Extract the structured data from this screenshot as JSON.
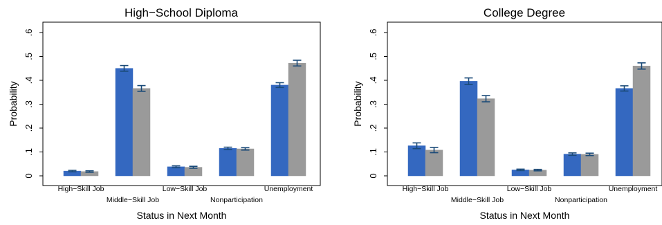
{
  "chart_data": [
    {
      "type": "bar",
      "title": "High−School Diploma",
      "xlabel": "Status in Next Month",
      "ylabel": "Probability",
      "ylim": [
        0,
        0.6
      ],
      "yticks": [
        0,
        0.1,
        0.2,
        0.3,
        0.4,
        0.5,
        0.6
      ],
      "ytick_labels": [
        "0",
        ".1",
        ".2",
        ".3",
        ".4",
        ".5",
        ".6"
      ],
      "categories": [
        "High−Skill Job",
        "Middle−Skill Job",
        "Low−Skill Job",
        "Nonparticipation",
        "Unemployment"
      ],
      "series": [
        {
          "color": "#3468c0",
          "values": [
            0.02,
            0.45,
            0.038,
            0.115,
            0.38
          ],
          "errors": [
            0.003,
            0.012,
            0.004,
            0.005,
            0.01
          ]
        },
        {
          "color": "#9a9a9a",
          "values": [
            0.018,
            0.366,
            0.036,
            0.113,
            0.472
          ],
          "errors": [
            0.003,
            0.012,
            0.004,
            0.005,
            0.012
          ]
        }
      ],
      "grid": false,
      "legend": "none"
    },
    {
      "type": "bar",
      "title": "College Degree",
      "xlabel": "Status in Next Month",
      "ylabel": "Probability",
      "ylim": [
        0,
        0.6
      ],
      "yticks": [
        0,
        0.1,
        0.2,
        0.3,
        0.4,
        0.5,
        0.6
      ],
      "ytick_labels": [
        "0",
        ".1",
        ".2",
        ".3",
        ".4",
        ".5",
        ".6"
      ],
      "categories": [
        "High−Skill Job",
        "Middle−Skill Job",
        "Low−Skill Job",
        "Nonparticipation",
        "Unemployment"
      ],
      "series": [
        {
          "color": "#3468c0",
          "values": [
            0.126,
            0.396,
            0.025,
            0.091,
            0.366
          ],
          "errors": [
            0.012,
            0.014,
            0.003,
            0.005,
            0.011
          ]
        },
        {
          "color": "#9a9a9a",
          "values": [
            0.108,
            0.323,
            0.024,
            0.09,
            0.46
          ],
          "errors": [
            0.011,
            0.013,
            0.003,
            0.005,
            0.013
          ]
        }
      ],
      "grid": false,
      "legend": "none"
    }
  ]
}
